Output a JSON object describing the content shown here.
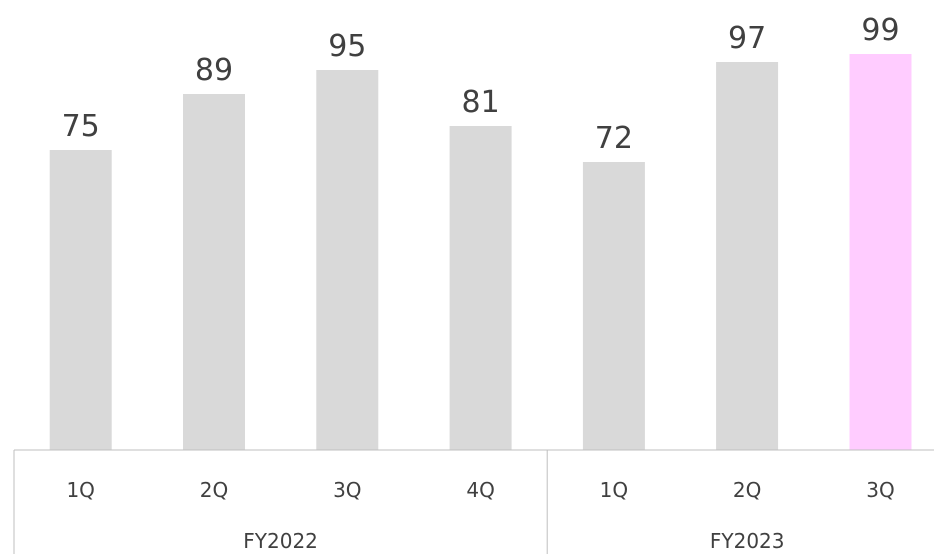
{
  "chart_data": {
    "type": "bar",
    "title": "",
    "xlabel": "",
    "ylabel": "",
    "categories": [
      "1Q",
      "2Q",
      "3Q",
      "4Q",
      "1Q",
      "2Q",
      "3Q"
    ],
    "groups": [
      {
        "label": "FY2022",
        "span": 4
      },
      {
        "label": "FY2023",
        "span": 3
      }
    ],
    "values": [
      75,
      89,
      95,
      81,
      72,
      97,
      99
    ],
    "highlight_index": 6,
    "ylim": [
      0,
      105
    ],
    "grid": false,
    "legend": "none",
    "colors": {
      "bar": "#d9d9d9",
      "highlight": "#ffccff",
      "axis": "#bfbfbf",
      "text": "#404040"
    }
  }
}
